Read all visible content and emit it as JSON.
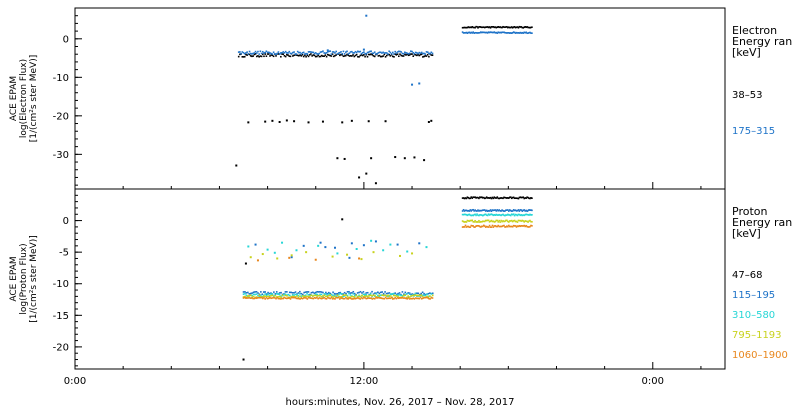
{
  "chart_data": {
    "type": "scatter",
    "x_axis": {
      "unit": "hours",
      "range": [
        0,
        27
      ],
      "ticks": [
        {
          "x": 0,
          "label": "0:00"
        },
        {
          "x": 12,
          "label": "12:00"
        },
        {
          "x": 24,
          "label": "0:00"
        }
      ],
      "minor_step": 2,
      "xlabel": "hours:minutes, Nov. 26, 2017 – Nov. 28, 2017"
    },
    "panels": [
      {
        "id": "electron",
        "ylabel": [
          "ACE EPAM",
          "log(Electron Flux)",
          "[1/(cm²s ster MeV)]"
        ],
        "ylim": [
          -39,
          8
        ],
        "yticks": [
          0,
          -10,
          -20,
          -30
        ],
        "yminor_step": 2,
        "legend_title": [
          "Electron",
          "Energy ran",
          "[keV]"
        ],
        "series": [
          {
            "name": "38–53",
            "color": "#000000",
            "segments": [
              {
                "x0": 6.8,
                "x1": 14.9,
                "step": 0.05,
                "base": -4.3,
                "noise": 0.4
              },
              {
                "x0": 16.1,
                "x1": 19.0,
                "step": 0.04,
                "base": 3.0,
                "noise": 0.15
              }
            ],
            "points": [
              [
                6.7,
                -32.9
              ],
              [
                7.2,
                -21.7
              ],
              [
                7.9,
                -21.5
              ],
              [
                8.2,
                -21.3
              ],
              [
                8.5,
                -21.6
              ],
              [
                8.8,
                -21.2
              ],
              [
                9.1,
                -21.4
              ],
              [
                9.7,
                -21.7
              ],
              [
                10.3,
                -21.5
              ],
              [
                11.1,
                -21.7
              ],
              [
                11.5,
                -21.3
              ],
              [
                12.2,
                -21.4
              ],
              [
                12.9,
                -21.4
              ],
              [
                14.7,
                -21.6
              ],
              [
                14.8,
                -21.3
              ],
              [
                10.9,
                -31.0
              ],
              [
                11.2,
                -31.2
              ],
              [
                11.8,
                -36.0
              ],
              [
                12.3,
                -31.0
              ],
              [
                12.5,
                -37.5
              ],
              [
                13.3,
                -30.7
              ],
              [
                13.7,
                -31.0
              ],
              [
                14.1,
                -30.8
              ],
              [
                14.5,
                -31.5
              ],
              [
                12.1,
                -35.0
              ]
            ]
          },
          {
            "name": "175–315",
            "color": "#1e73c8",
            "segments": [
              {
                "x0": 6.8,
                "x1": 14.9,
                "step": 0.05,
                "base": -3.6,
                "noise": 0.4
              },
              {
                "x0": 16.1,
                "x1": 19.0,
                "step": 0.04,
                "base": 1.6,
                "noise": 0.15
              }
            ],
            "points": [
              [
                12.1,
                6.0
              ],
              [
                14.0,
                -11.9
              ],
              [
                14.3,
                -11.6
              ],
              [
                10.5,
                -3.0
              ],
              [
                12.0,
                -2.8
              ]
            ]
          }
        ]
      },
      {
        "id": "proton",
        "ylabel": [
          "ACE EPAM",
          "log(Proton Flux)",
          "[1/(cm²s ster MeV)]"
        ],
        "ylim": [
          -23.5,
          5
        ],
        "yticks": [
          0,
          -5,
          -10,
          -15,
          -20
        ],
        "yminor_step": 1,
        "legend_title": [
          "Proton",
          "Energy ran",
          "[keV]"
        ],
        "series": [
          {
            "name": "47–68",
            "color": "#000000",
            "segments": [
              {
                "x0": 16.1,
                "x1": 19.0,
                "step": 0.04,
                "base": 3.6,
                "noise": 0.12
              }
            ],
            "points": [
              [
                11.1,
                0.2
              ],
              [
                7.1,
                -6.8
              ],
              [
                7.0,
                -22.0
              ]
            ]
          },
          {
            "name": "115–195",
            "color": "#1e73c8",
            "segments": [
              {
                "x0": 7.0,
                "x1": 14.9,
                "step": 0.06,
                "base": -11.5,
                "noise": 0.25
              },
              {
                "x0": 16.1,
                "x1": 19.0,
                "step": 0.04,
                "base": 1.6,
                "noise": 0.12
              }
            ],
            "points": [
              [
                7.5,
                -3.8
              ],
              [
                9.5,
                -4.0
              ],
              [
                10.2,
                -3.5
              ],
              [
                10.8,
                -4.3
              ],
              [
                11.5,
                -3.6
              ],
              [
                12.0,
                -3.9
              ],
              [
                12.5,
                -3.3
              ],
              [
                13.4,
                -3.8
              ],
              [
                14.3,
                -3.6
              ],
              [
                9.0,
                -5.8
              ],
              [
                10.4,
                -4.2
              ],
              [
                11.4,
                -5.9
              ]
            ]
          },
          {
            "name": "310–580",
            "color": "#27d6d6",
            "segments": [
              {
                "x0": 7.0,
                "x1": 14.9,
                "step": 0.06,
                "base": -11.8,
                "noise": 0.25
              },
              {
                "x0": 16.1,
                "x1": 19.0,
                "step": 0.04,
                "base": 0.9,
                "noise": 0.12
              }
            ],
            "points": [
              [
                7.2,
                -4.1
              ],
              [
                8.0,
                -4.6
              ],
              [
                8.6,
                -3.5
              ],
              [
                9.2,
                -4.7
              ],
              [
                10.1,
                -4.0
              ],
              [
                10.9,
                -5.2
              ],
              [
                11.7,
                -4.5
              ],
              [
                12.3,
                -3.2
              ],
              [
                12.8,
                -4.7
              ],
              [
                13.1,
                -3.8
              ],
              [
                13.8,
                -4.9
              ],
              [
                14.6,
                -4.2
              ],
              [
                8.3,
                -5.1
              ]
            ]
          },
          {
            "name": "795–1193",
            "color": "#c8d21e",
            "segments": [
              {
                "x0": 7.0,
                "x1": 14.9,
                "step": 0.06,
                "base": -12.0,
                "noise": 0.2
              },
              {
                "x0": 16.1,
                "x1": 19.0,
                "step": 0.04,
                "base": -0.1,
                "noise": 0.15
              }
            ],
            "points": [
              [
                7.3,
                -5.8
              ],
              [
                7.8,
                -5.3
              ],
              [
                8.4,
                -6.0
              ],
              [
                9.0,
                -5.5
              ],
              [
                9.6,
                -5.0
              ],
              [
                10.7,
                -5.7
              ],
              [
                11.3,
                -5.4
              ],
              [
                11.9,
                -6.1
              ],
              [
                12.4,
                -5.0
              ],
              [
                13.5,
                -5.6
              ],
              [
                14.0,
                -5.2
              ]
            ]
          },
          {
            "name": "1060–1900",
            "color": "#e8871e",
            "segments": [
              {
                "x0": 7.0,
                "x1": 14.9,
                "step": 0.05,
                "base": -12.3,
                "noise": 0.12
              },
              {
                "x0": 16.1,
                "x1": 19.0,
                "step": 0.04,
                "base": -0.9,
                "noise": 0.15
              }
            ],
            "points": [
              [
                7.6,
                -6.3
              ],
              [
                8.9,
                -5.9
              ],
              [
                10.0,
                -6.2
              ],
              [
                11.8,
                -6.0
              ]
            ]
          }
        ]
      }
    ]
  }
}
